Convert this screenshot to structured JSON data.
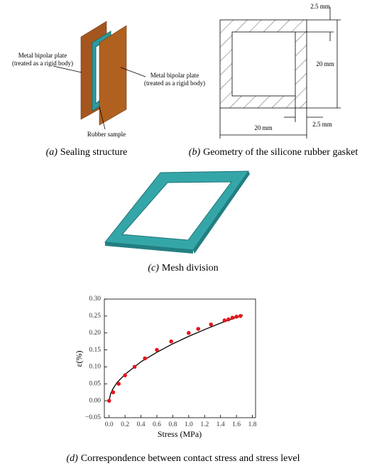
{
  "panels": {
    "a": {
      "label": "(a)",
      "caption": "Sealing structure",
      "plate_left": [
        "Metal bipolar plate",
        "(treated as a rigid body)"
      ],
      "plate_right": [
        "Metal bipolar plate",
        "(treated as a rigid body)"
      ],
      "rubber": "Rubber sample"
    },
    "b": {
      "label": "(b)",
      "caption": "Geometry of the silicone rubber gasket",
      "top_thickness": "2.5 mm",
      "height": "20 mm",
      "width": "20 mm",
      "side_thickness": "2.5 mm"
    },
    "c": {
      "label": "(c)",
      "caption": "Mesh division"
    },
    "d": {
      "label": "(d)",
      "caption": "Correspondence between contact stress and stress level"
    }
  },
  "chart_data": {
    "type": "scatter",
    "x_label": "Stress (MPa)",
    "y_label": "ε(%)",
    "x": [
      0.0,
      0.05,
      0.12,
      0.2,
      0.32,
      0.45,
      0.6,
      0.78,
      1.0,
      1.12,
      1.28,
      1.45,
      1.5,
      1.55,
      1.6,
      1.65
    ],
    "values": [
      0.0,
      0.025,
      0.05,
      0.075,
      0.1,
      0.125,
      0.15,
      0.175,
      0.2,
      0.212,
      0.225,
      0.237,
      0.24,
      0.245,
      0.248,
      0.25
    ],
    "color": "#e8141b",
    "fit": {
      "x": [
        0,
        0.02,
        0.05,
        0.1,
        0.2,
        0.4,
        0.6,
        0.8,
        1.0,
        1.2,
        1.4,
        1.6,
        1.68
      ],
      "values": [
        0,
        0.022,
        0.036,
        0.054,
        0.078,
        0.115,
        0.143,
        0.168,
        0.19,
        0.21,
        0.229,
        0.246,
        0.253
      ],
      "color": "#000000"
    },
    "xlim": [
      -0.06,
      1.84
    ],
    "ylim": [
      -0.05,
      0.3
    ],
    "xticks": [
      {
        "value": 0,
        "label": "0.0"
      },
      {
        "value": 0.2,
        "label": "0.2"
      },
      {
        "value": 0.4,
        "label": "0.4"
      },
      {
        "value": 0.6,
        "label": "0.6"
      },
      {
        "value": 0.8,
        "label": "0.8"
      },
      {
        "value": 1,
        "label": "1.0"
      },
      {
        "value": 1.2,
        "label": "1.2"
      },
      {
        "value": 1.4,
        "label": "1.4"
      },
      {
        "value": 1.6,
        "label": "1.6"
      },
      {
        "value": 1.8,
        "label": "1.8"
      }
    ],
    "yticks": [
      {
        "value": -0.05,
        "label": "−0.05"
      },
      {
        "value": 0,
        "label": "0.00"
      },
      0.05,
      {
        "value": 0.1,
        "label": "0.10"
      },
      0.15,
      {
        "value": 0.2,
        "label": "0.20"
      },
      0.25,
      {
        "value": 0.3,
        "label": "0.30"
      }
    ],
    "grid": false
  }
}
